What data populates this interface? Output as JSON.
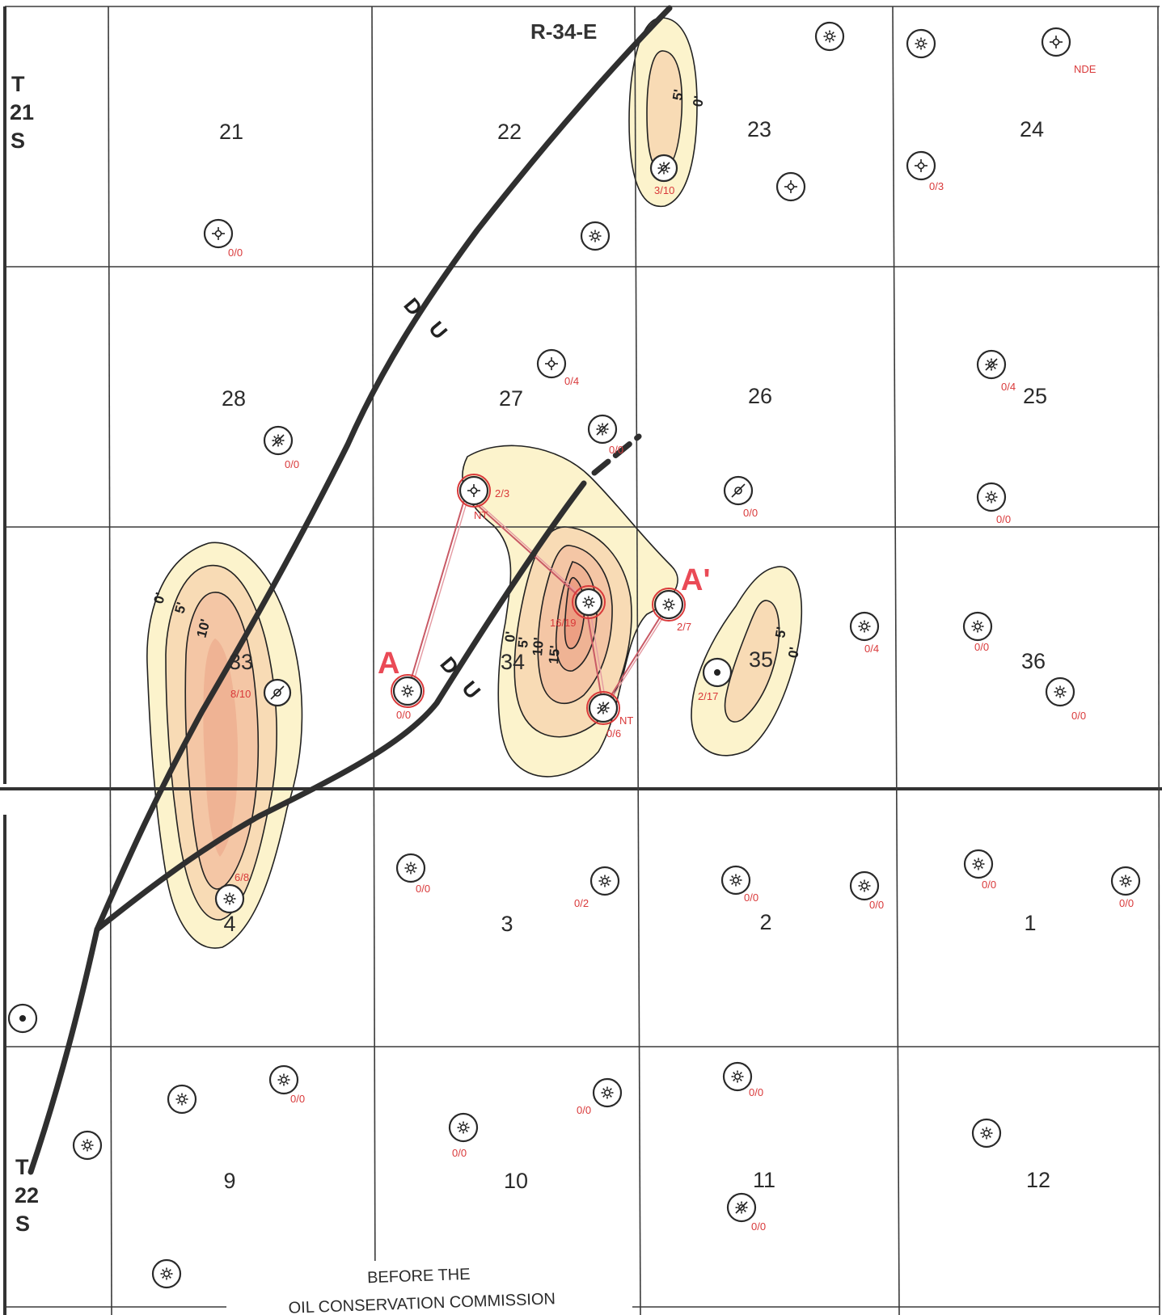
{
  "range_label": "R-34-E",
  "township_top": [
    "T",
    "21",
    "S"
  ],
  "township_bottom": [
    "T",
    "22",
    "S"
  ],
  "sections": [
    {
      "id": "s21",
      "label": "21"
    },
    {
      "id": "s22",
      "label": "22"
    },
    {
      "id": "s23",
      "label": "23"
    },
    {
      "id": "s24",
      "label": "24"
    },
    {
      "id": "s28",
      "label": "28"
    },
    {
      "id": "s27",
      "label": "27"
    },
    {
      "id": "s26",
      "label": "26"
    },
    {
      "id": "s25",
      "label": "25"
    },
    {
      "id": "s33",
      "label": "33"
    },
    {
      "id": "s34",
      "label": "34"
    },
    {
      "id": "s35",
      "label": "35"
    },
    {
      "id": "s36",
      "label": "36"
    },
    {
      "id": "s4",
      "label": "4"
    },
    {
      "id": "s3",
      "label": "3"
    },
    {
      "id": "s2",
      "label": "2"
    },
    {
      "id": "s1",
      "label": "1"
    },
    {
      "id": "s9",
      "label": "9"
    },
    {
      "id": "s10",
      "label": "10"
    },
    {
      "id": "s11",
      "label": "11"
    },
    {
      "id": "s12",
      "label": "12"
    }
  ],
  "wells": [
    {
      "id": "w1",
      "label": "",
      "type": "gas",
      "highlight": "none"
    },
    {
      "id": "w2",
      "label": "",
      "type": "gas",
      "highlight": "none"
    },
    {
      "id": "w3",
      "label": "NDE",
      "type": "dry",
      "highlight": "none"
    },
    {
      "id": "w4",
      "label": "3/10",
      "type": "gas-oil",
      "highlight": "blue"
    },
    {
      "id": "w5",
      "label": "",
      "type": "dry",
      "highlight": "none"
    },
    {
      "id": "w6",
      "label": "0/3",
      "type": "dry",
      "highlight": "none"
    },
    {
      "id": "w7",
      "label": "0/0",
      "type": "dry",
      "highlight": "none"
    },
    {
      "id": "w8",
      "label": "",
      "type": "gas",
      "highlight": "none"
    },
    {
      "id": "w9",
      "label": "0/4",
      "type": "dry",
      "highlight": "none"
    },
    {
      "id": "w10",
      "label": "0/0",
      "type": "gas-oil",
      "highlight": "none"
    },
    {
      "id": "w11",
      "label": "0/0",
      "type": "gas-oil",
      "highlight": "none"
    },
    {
      "id": "w12",
      "label": "0/4",
      "type": "gas-oil",
      "highlight": "none"
    },
    {
      "id": "w13",
      "label": "0/0",
      "type": "abandoned",
      "highlight": "none"
    },
    {
      "id": "w14",
      "label": "0/0",
      "type": "gas",
      "highlight": "none"
    },
    {
      "id": "w15",
      "label": "2/3",
      "type": "dry",
      "highlight": "red"
    },
    {
      "id": "w16",
      "label": "16/19",
      "type": "gas",
      "highlight": "blue-red"
    },
    {
      "id": "w17",
      "label": "2/7",
      "type": "gas",
      "highlight": "red"
    },
    {
      "id": "w18",
      "label": "0/0",
      "type": "gas",
      "highlight": "red"
    },
    {
      "id": "w19",
      "label": "0/6",
      "type": "gas-oil",
      "highlight": "red"
    },
    {
      "id": "w20",
      "label": "8/10",
      "type": "abandoned",
      "highlight": "blue"
    },
    {
      "id": "w21",
      "label": "2/17",
      "type": "oil",
      "highlight": "none"
    },
    {
      "id": "w22",
      "label": "0/4",
      "type": "gas",
      "highlight": "none"
    },
    {
      "id": "w23",
      "label": "0/0",
      "type": "gas",
      "highlight": "none"
    },
    {
      "id": "w24",
      "label": "0/0",
      "type": "gas",
      "highlight": "none"
    },
    {
      "id": "w25",
      "label": "0/0",
      "type": "gas",
      "highlight": "none"
    },
    {
      "id": "w26",
      "label": "0/2",
      "type": "gas",
      "highlight": "none"
    },
    {
      "id": "w27",
      "label": "0/0",
      "type": "gas",
      "highlight": "none"
    },
    {
      "id": "w28",
      "label": "0/0",
      "type": "gas",
      "highlight": "none"
    },
    {
      "id": "w29",
      "label": "0/0",
      "type": "gas",
      "highlight": "none"
    },
    {
      "id": "w30",
      "label": "0/0",
      "type": "gas",
      "highlight": "none"
    },
    {
      "id": "w31",
      "label": "6/8",
      "type": "gas",
      "highlight": "none"
    },
    {
      "id": "w32",
      "label": "",
      "type": "oil",
      "highlight": "none"
    },
    {
      "id": "w33",
      "label": "",
      "type": "gas",
      "highlight": "none"
    },
    {
      "id": "w34",
      "label": "",
      "type": "gas",
      "highlight": "none"
    },
    {
      "id": "w35",
      "label": "0/0",
      "type": "gas",
      "highlight": "none"
    },
    {
      "id": "w36",
      "label": "0/0",
      "type": "gas",
      "highlight": "none"
    },
    {
      "id": "w37",
      "label": "0/0",
      "type": "gas",
      "highlight": "none"
    },
    {
      "id": "w38",
      "label": "0/0",
      "type": "gas",
      "highlight": "none"
    },
    {
      "id": "w39",
      "label": "",
      "type": "gas",
      "highlight": "none"
    },
    {
      "id": "w40",
      "label": "0/0",
      "type": "gas-oil",
      "highlight": "none"
    },
    {
      "id": "w41",
      "label": "",
      "type": "gas",
      "highlight": "none"
    }
  ],
  "well_notes": {
    "nt1": "NT",
    "nt2": "NT"
  },
  "cross_section": {
    "start": "A",
    "end": "A'"
  },
  "fault_labels": {
    "d": "D",
    "u": "U"
  },
  "contours": {
    "zero": "0'",
    "five": "5'",
    "ten": "10'",
    "fifteen": "15'"
  },
  "colors": {
    "isopach_0": "#fcf3cc",
    "isopach_5": "#f8dbb5",
    "isopach_10": "#f4c6a5",
    "isopach_15": "#efb394",
    "highlight_blue": "#6c8fd6",
    "label_red": "#d9393a",
    "cross_section_line": "#c95a66"
  },
  "caption": {
    "line1": "BEFORE THE",
    "line2": "OIL CONSERVATION COMMISSION"
  }
}
